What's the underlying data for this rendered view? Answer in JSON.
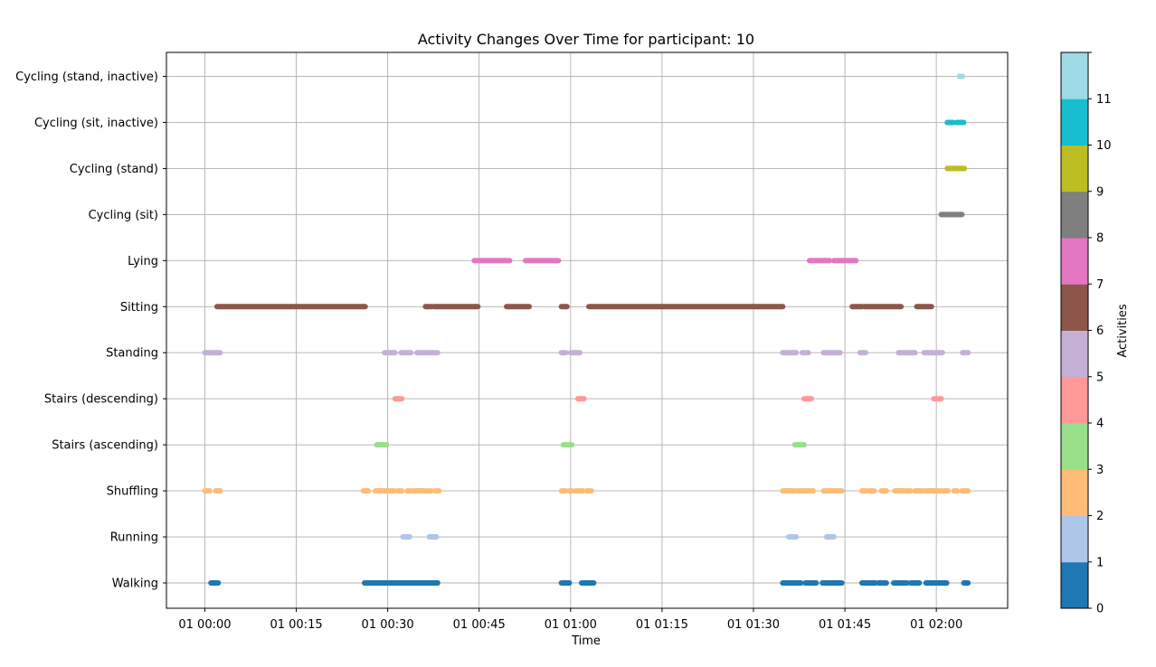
{
  "chart_data": {
    "type": "scatter",
    "title": "Activity Changes Over Time for participant: 10",
    "xlabel": "Time",
    "ylabel": "",
    "x_unit": "minutes",
    "x_ticks": [
      {
        "value": 0,
        "label": "01 00:00"
      },
      {
        "value": 15,
        "label": "01 00:15"
      },
      {
        "value": 30,
        "label": "01 00:30"
      },
      {
        "value": 45,
        "label": "01 00:45"
      },
      {
        "value": 60,
        "label": "01 01:00"
      },
      {
        "value": 75,
        "label": "01 01:15"
      },
      {
        "value": 90,
        "label": "01 01:30"
      },
      {
        "value": 105,
        "label": "01 01:45"
      },
      {
        "value": 120,
        "label": "01 02:00"
      }
    ],
    "xlim": [
      -6.3,
      131.7
    ],
    "grid": true,
    "categories": [
      "Walking",
      "Running",
      "Shuffling",
      "Stairs (ascending)",
      "Stairs (descending)",
      "Standing",
      "Sitting",
      "Lying",
      "Cycling (sit)",
      "Cycling (stand)",
      "Cycling (sit, inactive)",
      "Cycling (stand, inactive)"
    ],
    "colorbar": {
      "label": "Activities",
      "ticks": [
        0,
        1,
        2,
        3,
        4,
        5,
        6,
        7,
        8,
        9,
        10,
        11
      ],
      "colors": [
        "#1f77b4",
        "#aec7e8",
        "#ffbb78",
        "#98df8a",
        "#ff9896",
        "#c5b0d5",
        "#8c564b",
        "#e377c2",
        "#7f7f7f",
        "#bcbd22",
        "#17becf",
        "#9edae5"
      ]
    },
    "series": [
      {
        "activity": 0,
        "segments": [
          [
            1.0,
            2.2
          ],
          [
            26.2,
            38.2
          ],
          [
            58.5,
            59.8
          ],
          [
            61.8,
            63.8
          ],
          [
            94.8,
            97.8
          ],
          [
            98.5,
            100.3
          ],
          [
            101.3,
            104.5
          ],
          [
            107.8,
            110.0
          ],
          [
            110.5,
            111.8
          ],
          [
            113.0,
            115.2
          ],
          [
            115.8,
            117.2
          ],
          [
            118.3,
            121.7
          ],
          [
            124.5,
            125.2
          ]
        ]
      },
      {
        "activity": 1,
        "segments": [
          [
            32.5,
            33.6
          ],
          [
            36.8,
            38.0
          ],
          [
            95.8,
            97.0
          ],
          [
            102.0,
            103.2
          ]
        ]
      },
      {
        "activity": 2,
        "segments": [
          [
            0.0,
            0.8
          ],
          [
            1.8,
            2.5
          ],
          [
            26.0,
            26.8
          ],
          [
            28.0,
            31.0
          ],
          [
            31.6,
            32.3
          ],
          [
            33.2,
            33.8
          ],
          [
            34.2,
            36.2
          ],
          [
            36.6,
            37.2
          ],
          [
            37.8,
            38.4
          ],
          [
            58.5,
            59.2
          ],
          [
            59.8,
            60.2
          ],
          [
            60.8,
            62.0
          ],
          [
            62.6,
            63.4
          ],
          [
            94.8,
            96.8
          ],
          [
            97.2,
            98.5
          ],
          [
            98.8,
            99.8
          ],
          [
            101.5,
            102.5
          ],
          [
            102.8,
            104.5
          ],
          [
            107.8,
            108.5
          ],
          [
            109.0,
            109.8
          ],
          [
            111.0,
            111.8
          ],
          [
            113.2,
            114.8
          ],
          [
            115.2,
            115.8
          ],
          [
            116.5,
            117.8
          ],
          [
            118.2,
            119.6
          ],
          [
            119.9,
            120.6
          ],
          [
            121.0,
            121.9
          ],
          [
            122.9,
            123.4
          ],
          [
            124.2,
            125.2
          ]
        ]
      },
      {
        "activity": 3,
        "segments": [
          [
            28.2,
            29.8
          ],
          [
            58.8,
            60.2
          ],
          [
            96.8,
            98.3
          ]
        ]
      },
      {
        "activity": 4,
        "segments": [
          [
            31.2,
            32.3
          ],
          [
            61.2,
            62.2
          ],
          [
            98.3,
            99.5
          ],
          [
            119.6,
            120.8
          ]
        ]
      },
      {
        "activity": 5,
        "segments": [
          [
            0.0,
            2.5
          ],
          [
            29.5,
            31.2
          ],
          [
            32.2,
            33.8
          ],
          [
            34.8,
            36.5
          ],
          [
            36.9,
            38.2
          ],
          [
            58.5,
            59.2
          ],
          [
            60.0,
            61.5
          ],
          [
            94.8,
            97.0
          ],
          [
            98.0,
            99.0
          ],
          [
            101.5,
            104.2
          ],
          [
            107.5,
            108.4
          ],
          [
            113.8,
            116.5
          ],
          [
            118.0,
            121.0
          ],
          [
            124.3,
            125.2
          ]
        ]
      },
      {
        "activity": 6,
        "segments": [
          [
            2.0,
            26.3
          ],
          [
            36.2,
            37.2
          ],
          [
            37.6,
            44.8
          ],
          [
            49.5,
            53.2
          ],
          [
            58.5,
            59.4
          ],
          [
            63.0,
            94.8
          ],
          [
            106.2,
            107.8
          ],
          [
            108.2,
            114.2
          ],
          [
            116.8,
            119.2
          ]
        ]
      },
      {
        "activity": 7,
        "segments": [
          [
            44.2,
            50.0
          ],
          [
            52.6,
            58.0
          ],
          [
            99.2,
            102.5
          ],
          [
            103.2,
            106.8
          ]
        ]
      },
      {
        "activity": 8,
        "segments": [
          [
            120.8,
            124.2
          ]
        ]
      },
      {
        "activity": 9,
        "segments": [
          [
            121.8,
            124.6
          ]
        ]
      },
      {
        "activity": 10,
        "segments": [
          [
            121.8,
            122.8
          ],
          [
            123.4,
            124.5
          ]
        ]
      },
      {
        "activity": 11,
        "segments": [
          [
            123.8,
            124.3
          ]
        ]
      }
    ]
  }
}
